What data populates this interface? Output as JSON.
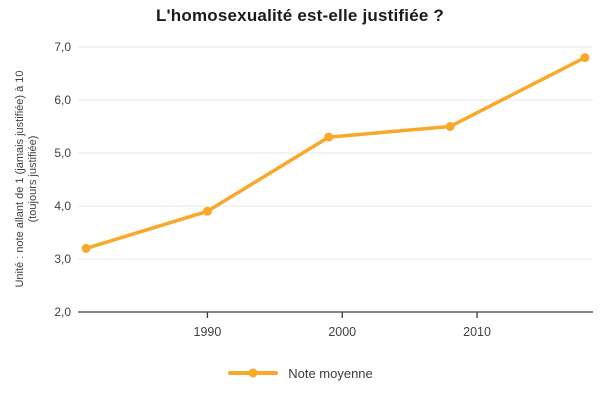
{
  "title": "L'homosexualité est-elle justifiée ?",
  "y_axis": {
    "unit_line1": "Unité : note allant de 1 (jamais justifiée) à 10",
    "unit_line2": "(toujours justifiée)"
  },
  "legend": {
    "label": "Note moyenne"
  },
  "colors": {
    "line": "#F9A82A",
    "grid": "#E8E8E8",
    "baseline": "#3c3c3c",
    "tick_text": "#424242",
    "title_text": "#1b1b1b"
  },
  "chart_data": {
    "type": "line",
    "title": "L'homosexualité est-elle justifiée ?",
    "ylabel": "Unité : note allant de 1 (jamais justifiée) à 10 (toujours justifiée)",
    "xlabel": "",
    "series": [
      {
        "name": "Note moyenne",
        "x": [
          1981,
          1990,
          1999,
          2008,
          2018
        ],
        "values": [
          3.2,
          3.9,
          5.3,
          5.5,
          6.8
        ]
      }
    ],
    "xticks": [
      1990,
      2000,
      2010
    ],
    "yticks": [
      2,
      3,
      4,
      5,
      6,
      7
    ],
    "ytick_labels": [
      "2,0",
      "3,0",
      "4,0",
      "5,0",
      "6,0",
      "7,0"
    ],
    "xlim": [
      1980.4,
      2018.6
    ],
    "ylim": [
      2,
      7
    ],
    "grid": "horizontal",
    "legend_position": "bottom-center"
  }
}
